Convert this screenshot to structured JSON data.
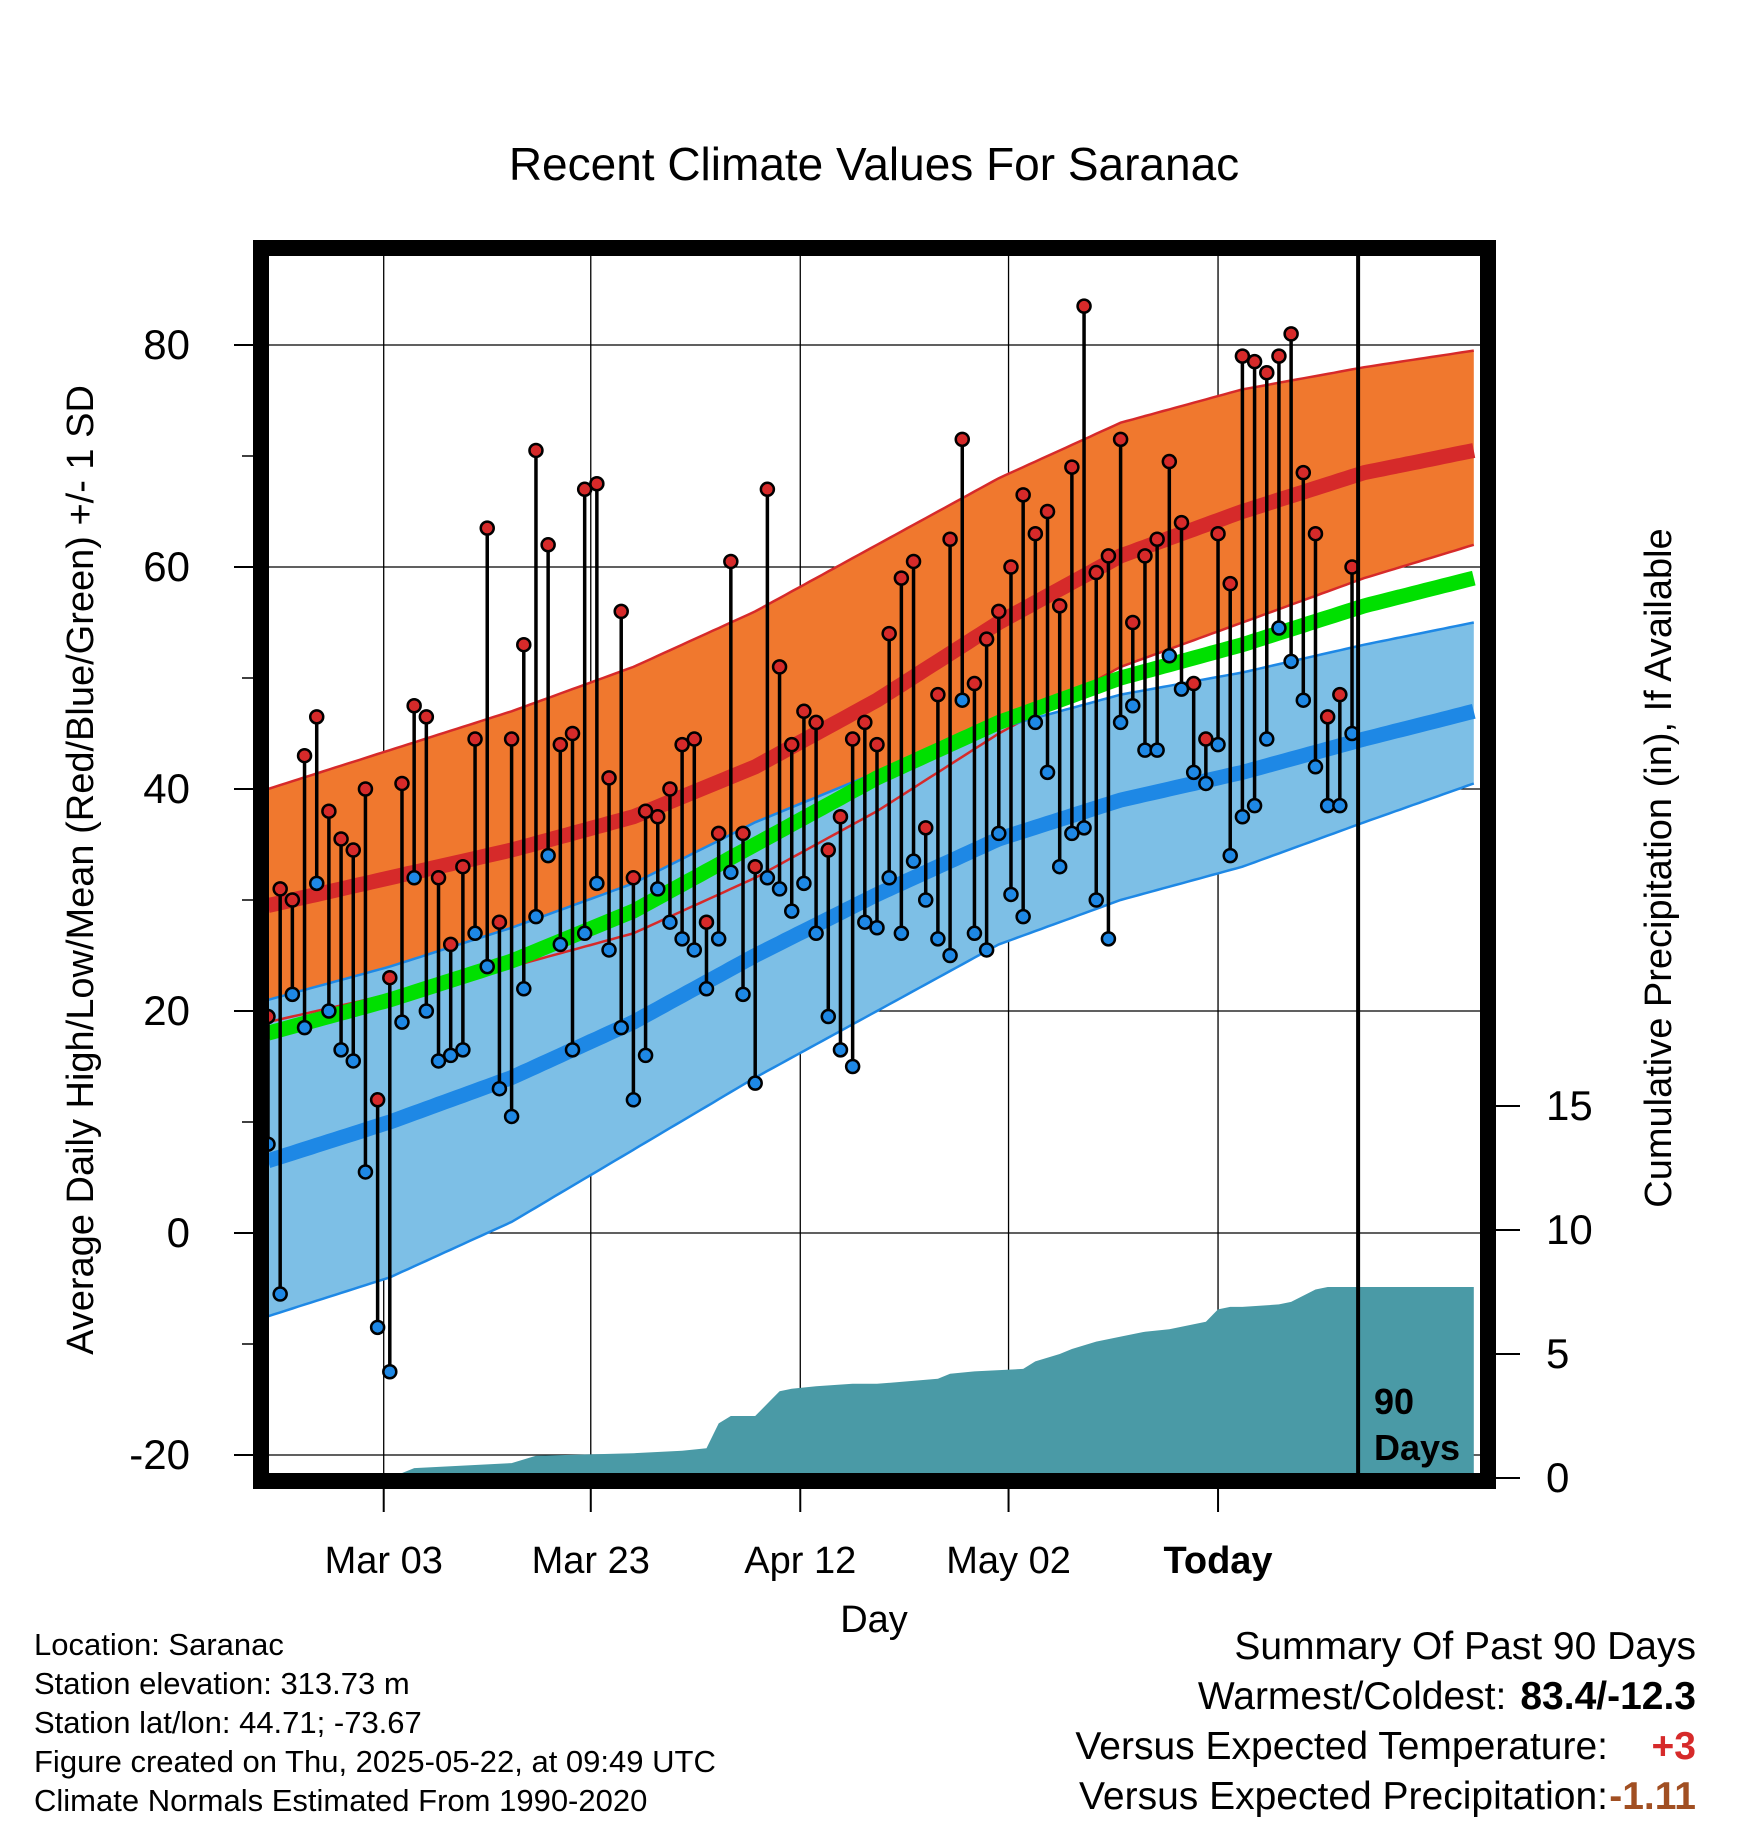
{
  "chart_data": {
    "type": "line",
    "title": "Recent Climate Values For Saranac",
    "xlabel": "Day",
    "ylabel_left": "Average Daily High/Low/Mean (Red/Blue/Green) +/- 1 SD",
    "ylabel_right": "Cumulative Precipitation (in), If Available",
    "x_tick_labels": [
      "Mar 03",
      "Mar 23",
      "Apr 12",
      "May 02",
      "Today"
    ],
    "y_left_ticks": [
      80,
      60,
      40,
      20,
      0,
      -20
    ],
    "y_right_ticks": [
      15,
      10,
      5,
      0
    ],
    "ylim_left": [
      -21.5,
      88
    ],
    "ylim_right": [
      0,
      20
    ],
    "today_marker_label": [
      "90",
      "Days"
    ],
    "colors": {
      "high": "#d62a2a",
      "low": "#1e88e5",
      "mean": "#00e000",
      "high_band": "#f0782e",
      "low_band": "#7dbfe6",
      "precip": "#4a9aa6"
    },
    "normals": {
      "days": [
        0,
        10,
        20,
        30,
        40,
        50,
        60,
        70,
        80,
        90,
        99
      ],
      "high_mean": [
        29.5,
        32,
        34.5,
        37.5,
        42,
        48,
        55,
        61,
        65,
        68.5,
        70.5
      ],
      "high_sd_upper": [
        40,
        43.5,
        47,
        51,
        56,
        62,
        68,
        73,
        76,
        78,
        79.5
      ],
      "high_sd_lower": [
        19,
        21.5,
        24,
        27,
        32,
        38,
        45,
        51,
        55,
        59,
        62
      ],
      "low_mean": [
        6.5,
        10,
        14,
        19,
        25,
        30.5,
        35.5,
        39,
        41.5,
        44.5,
        47
      ],
      "low_sd_upper": [
        21,
        24,
        27.5,
        31.5,
        37,
        41.5,
        45.5,
        48.5,
        50.5,
        53,
        55
      ],
      "low_sd_lower": [
        -7.5,
        -4,
        1,
        7.5,
        14,
        20,
        26,
        30,
        33,
        37,
        40.5
      ],
      "avg_mean": [
        18,
        21,
        24.5,
        29,
        35,
        41,
        46,
        50,
        53,
        56.5,
        59
      ]
    },
    "daily_observations": {
      "high": [
        19.5,
        31,
        30,
        43,
        46.5,
        38,
        35.5,
        34.5,
        40,
        12,
        23,
        40.5,
        47.5,
        46.5,
        32,
        26,
        33,
        44.5,
        63.5,
        28,
        44.5,
        53,
        70.5,
        62,
        44,
        45,
        67,
        67.5,
        41,
        56,
        32,
        38,
        37.5,
        40,
        44,
        44.5,
        28,
        36,
        60.5,
        36,
        33,
        67,
        51,
        44,
        47,
        46,
        34.5,
        37.5,
        44.5,
        46,
        44,
        54,
        59,
        60.5,
        36.5,
        48.5,
        62.5,
        71.5,
        49.5,
        53.5,
        56,
        60,
        66.5,
        63,
        65,
        56.5,
        69,
        83.5,
        59.5,
        61,
        71.5,
        55,
        61,
        62.5,
        69.5,
        64,
        49.5,
        44.5,
        63,
        58.5,
        79,
        78.5,
        77.5,
        79,
        81,
        68.5,
        63,
        46.5,
        48.5,
        60
      ],
      "low": [
        8,
        -5.5,
        21.5,
        18.5,
        31.5,
        20,
        16.5,
        15.5,
        5.5,
        -8.5,
        -12.5,
        19,
        32,
        20,
        15.5,
        16,
        16.5,
        27,
        24,
        13,
        10.5,
        22,
        28.5,
        34,
        26,
        16.5,
        27,
        31.5,
        25.5,
        18.5,
        12,
        16,
        31,
        28,
        26.5,
        25.5,
        22,
        26.5,
        32.5,
        21.5,
        13.5,
        32,
        31,
        29,
        31.5,
        27,
        19.5,
        16.5,
        15,
        28,
        27.5,
        32,
        27,
        33.5,
        30,
        26.5,
        25,
        48,
        27,
        25.5,
        36,
        30.5,
        28.5,
        46,
        41.5,
        33,
        36,
        36.5,
        30,
        26.5,
        46,
        47.5,
        43.5,
        43.5,
        52,
        49,
        41.5,
        40.5,
        44,
        34,
        37.5,
        38.5,
        44.5,
        54.5,
        51.5,
        48,
        42,
        38.5,
        38.5,
        45
      ]
    },
    "cumulative_precip": {
      "days": [
        0,
        10,
        12,
        20,
        22,
        30,
        34,
        36,
        37,
        38,
        40,
        42,
        43,
        45,
        48,
        50,
        55,
        56,
        58,
        62,
        63,
        65,
        66,
        68,
        70,
        72,
        74,
        77,
        78,
        79,
        80,
        83,
        84,
        86,
        87,
        89,
        90,
        99
      ],
      "values": [
        0,
        0,
        0.4,
        0.6,
        0.9,
        1,
        1.1,
        1.2,
        2.2,
        2.5,
        2.5,
        3.5,
        3.6,
        3.7,
        3.8,
        3.8,
        4,
        4.2,
        4.3,
        4.4,
        4.7,
        5,
        5.2,
        5.5,
        5.7,
        5.9,
        6,
        6.3,
        6.8,
        6.9,
        6.9,
        7,
        7.1,
        7.6,
        7.7,
        7.7,
        7.7,
        7.7
      ]
    }
  },
  "footer": {
    "location": "Location: Saranac",
    "elevation": "Station elevation: 313.73 m",
    "latlon": "Station lat/lon: 44.71; -73.67",
    "created": "Figure created on Thu, 2025-05-22, at 09:49 UTC",
    "normals": "Climate Normals Estimated From 1990-2020"
  },
  "summary": {
    "title": "Summary Of Past 90 Days",
    "warmest_label": "Warmest/Coldest:",
    "warmest_value": "83.4/-12.3",
    "temp_label": "Versus Expected Temperature:",
    "temp_value": "+3",
    "precip_label": "Versus Expected Precipitation:",
    "precip_value": "-1.11"
  }
}
